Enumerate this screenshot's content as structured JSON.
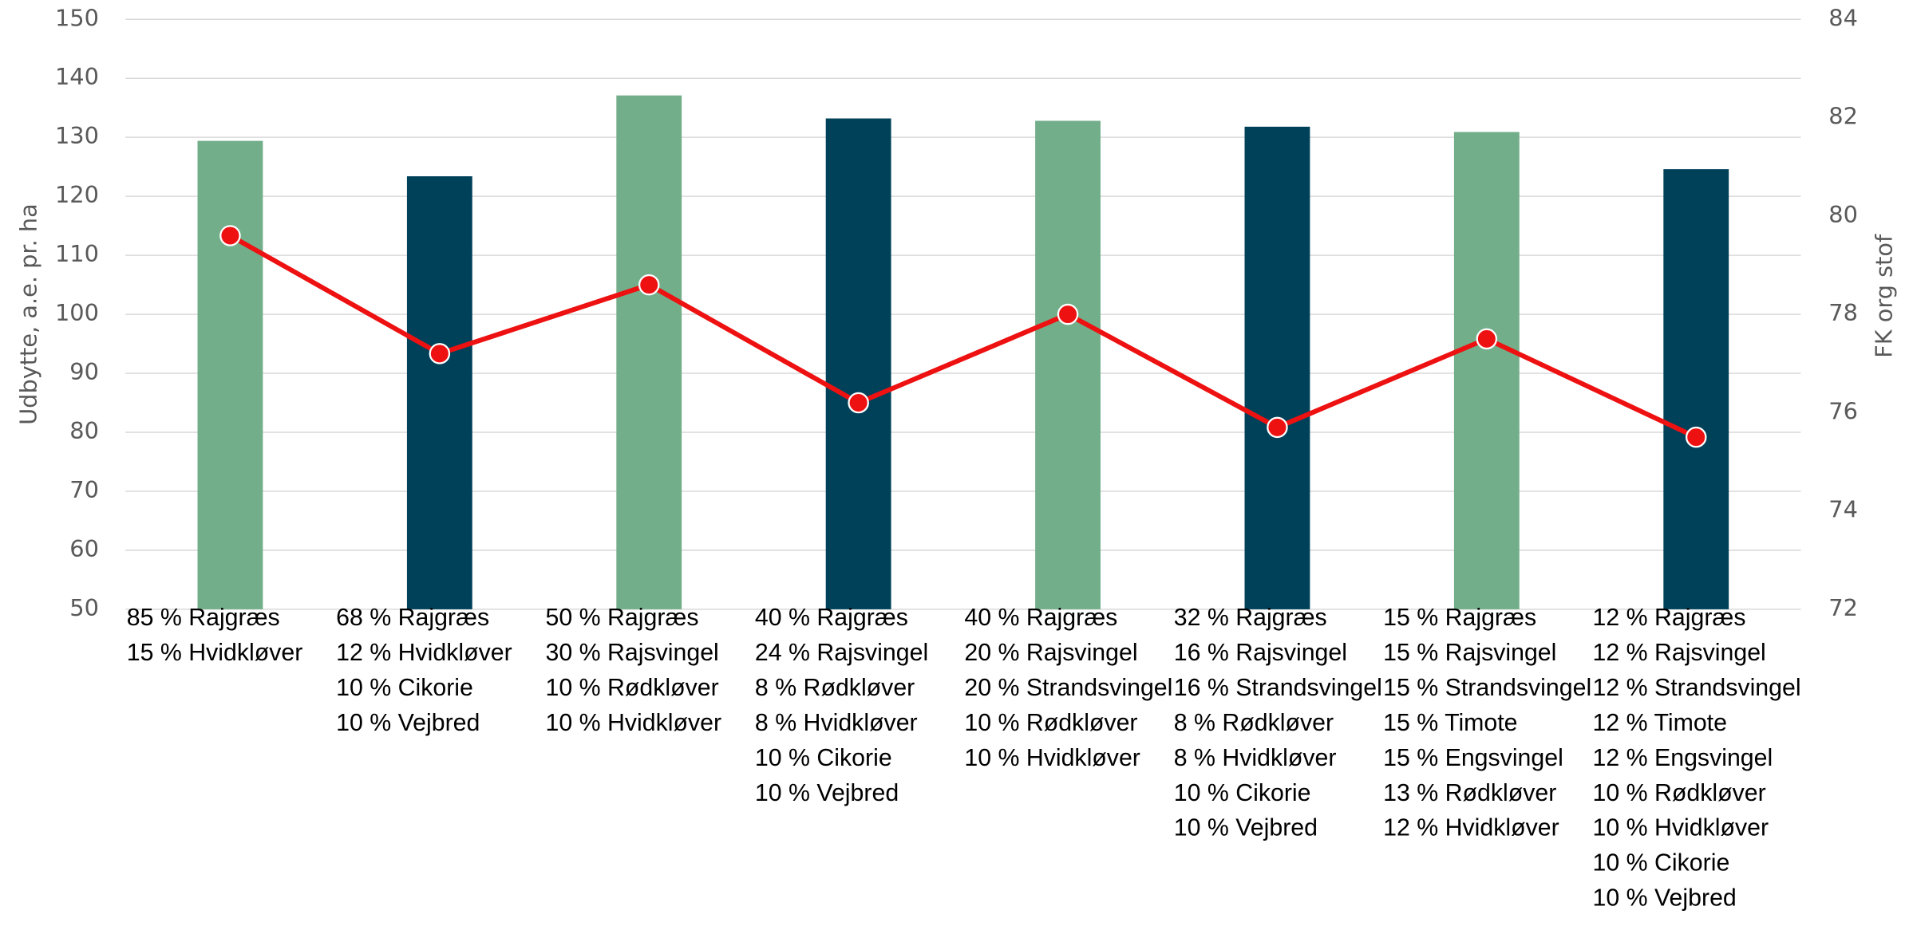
{
  "chart_data": {
    "type": "bar-line",
    "ylabel": "Udbytte, a.e. pr. ha",
    "y2label": "FK org stof",
    "categories": [
      [
        "85 % Rajgræs",
        "15 % Hvidkløver"
      ],
      [
        "68 % Rajgræs",
        "12 % Hvidkløver",
        "10 % Cikorie",
        "10 % Vejbred"
      ],
      [
        "50 % Rajgræs",
        "30 % Rajsvingel",
        "10 % Rødkløver",
        "10 % Hvidkløver"
      ],
      [
        "40 % Rajgræs",
        "24 % Rajsvingel",
        "8 % Rødkløver",
        "8 % Hvidkløver",
        "10 % Cikorie",
        "10 % Vejbred"
      ],
      [
        "40 % Rajgræs",
        "20 % Rajsvingel",
        "20 % Strandsvingel",
        "10 % Rødkløver",
        "10 % Hvidkløver"
      ],
      [
        "32 % Rajgræs",
        "16 % Rajsvingel",
        "16 % Strandsvingel",
        "8 % Rødkløver",
        "8 % Hvidkløver",
        "10 % Cikorie",
        "10 % Vejbred"
      ],
      [
        "15 % Rajgræs",
        "15 % Rajsvingel",
        "15 % Strandsvingel",
        "15 % Timote",
        "15 % Engsvingel",
        "13 % Rødkløver",
        "12 % Hvidkløver"
      ],
      [
        "12 % Rajgræs",
        "12 % Rajsvingel",
        "12 % Strandsvingel",
        "12 % Timote",
        "12 % Engsvingel",
        "10 % Rødkløver",
        "10 % Hvidkløver",
        "10 % Cikorie",
        "10 % Vejbred"
      ]
    ],
    "series": [
      {
        "type": "bar",
        "colors": [
          "#73ae8a",
          "#00415a",
          "#73ae8a",
          "#00415a",
          "#73ae8a",
          "#00415a",
          "#73ae8a",
          "#00415a"
        ],
        "values": [
          129.4,
          123.4,
          137.1,
          133.2,
          132.8,
          131.8,
          130.9,
          124.6
        ]
      },
      {
        "type": "line",
        "axis": "y2",
        "color": "#ee1111",
        "values": [
          79.6,
          77.2,
          78.6,
          76.2,
          78.0,
          75.7,
          77.5,
          75.5
        ]
      }
    ],
    "ylim": [
      50,
      150
    ],
    "yticks": [
      50,
      60,
      70,
      80,
      90,
      100,
      110,
      120,
      130,
      140,
      150
    ],
    "y2lim": [
      72,
      84
    ],
    "y2ticks": [
      72,
      74,
      76,
      78,
      80,
      82,
      84
    ],
    "grid": true
  }
}
